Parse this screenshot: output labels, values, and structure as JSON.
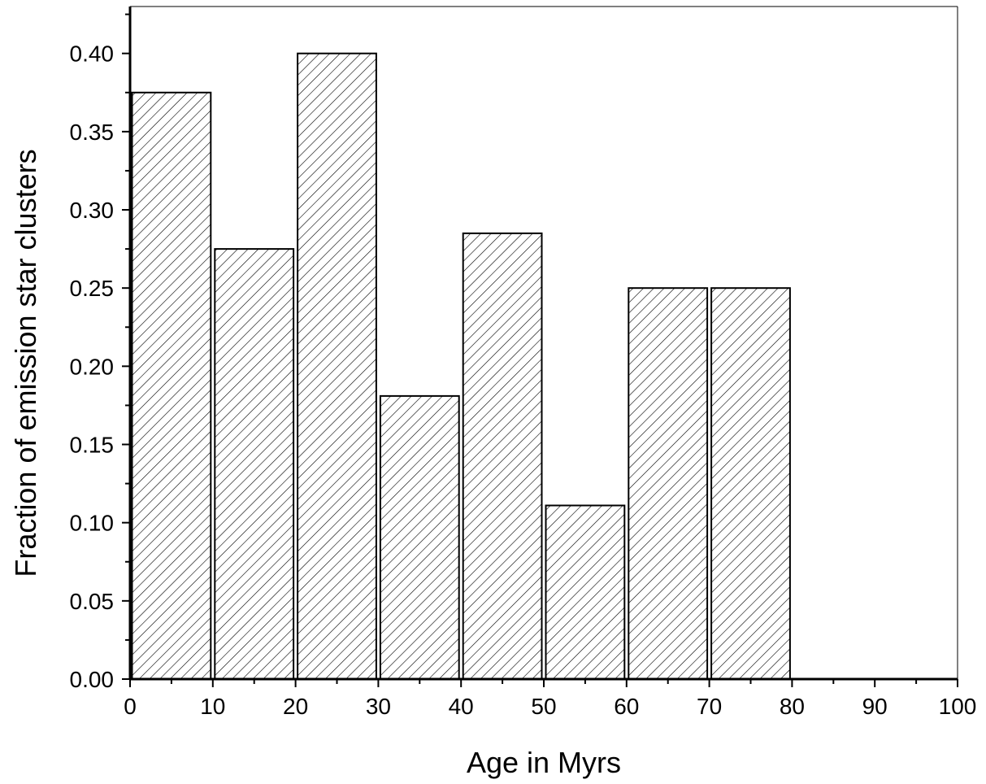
{
  "chart_data": {
    "type": "bar",
    "title": "",
    "xlabel": "Age in Myrs",
    "ylabel": "Fraction of emission star clusters",
    "bins": [
      {
        "x0": 0,
        "x1": 10,
        "value": 0.375
      },
      {
        "x0": 10,
        "x1": 20,
        "value": 0.275
      },
      {
        "x0": 20,
        "x1": 30,
        "value": 0.4
      },
      {
        "x0": 30,
        "x1": 40,
        "value": 0.181
      },
      {
        "x0": 40,
        "x1": 50,
        "value": 0.285
      },
      {
        "x0": 50,
        "x1": 60,
        "value": 0.111
      },
      {
        "x0": 60,
        "x1": 70,
        "value": 0.25
      },
      {
        "x0": 70,
        "x1": 80,
        "value": 0.25
      }
    ],
    "xlim": [
      0,
      100
    ],
    "ylim": [
      0,
      0.43
    ],
    "xticks": [
      "0",
      "10",
      "20",
      "30",
      "40",
      "50",
      "60",
      "70",
      "80",
      "90",
      "100"
    ],
    "yticks": [
      "0.00",
      "0.05",
      "0.10",
      "0.15",
      "0.20",
      "0.25",
      "0.30",
      "0.35",
      "0.40"
    ],
    "fill": "diagonal-hatch",
    "colors": {
      "bar_stroke": "#000000",
      "hatch": "#000000",
      "background": "#ffffff"
    },
    "grid": false,
    "legend": "none"
  }
}
